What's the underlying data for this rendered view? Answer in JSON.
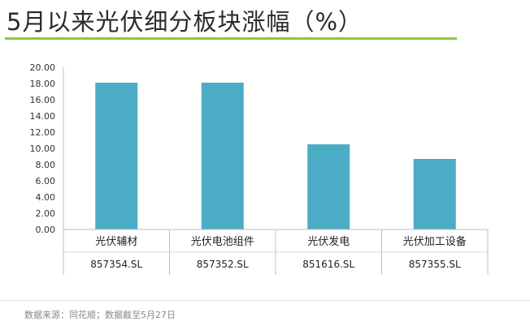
{
  "header": {
    "title": "5月以来光伏细分板块涨幅（%）"
  },
  "footer": {
    "source": "数据来源：同花顺；数据截至5月27日"
  },
  "colors": {
    "bar": "#4bacc6",
    "accent": "#8cc63f"
  },
  "chart_data": {
    "type": "bar",
    "title": "5月以来光伏细分板块涨幅（%）",
    "xlabel": "",
    "ylabel": "",
    "ylim": [
      0,
      20
    ],
    "yticks": [
      "0.00",
      "2.00",
      "4.00",
      "6.00",
      "8.00",
      "10.00",
      "12.00",
      "14.00",
      "16.00",
      "18.00",
      "20.00"
    ],
    "categories": [
      "光伏辅材",
      "光伏电池组件",
      "光伏发电",
      "光伏加工设备"
    ],
    "codes": [
      "857354.SL",
      "857352.SL",
      "851616.SL",
      "857355.SL"
    ],
    "values": [
      18.1,
      18.1,
      10.5,
      8.7
    ],
    "grid": false,
    "legend": "none"
  }
}
